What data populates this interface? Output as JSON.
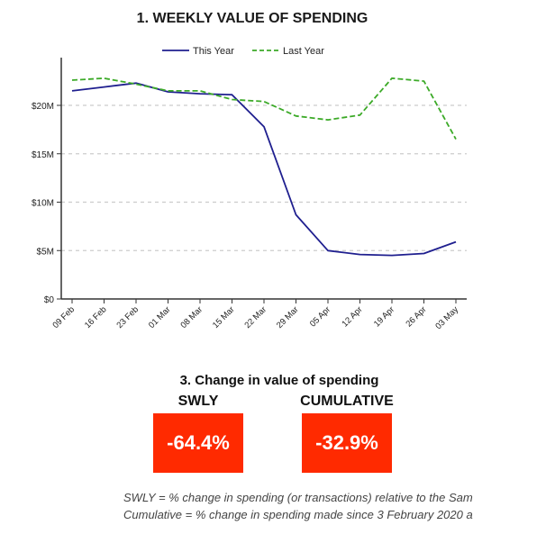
{
  "chart_title": "1. WEEKLY VALUE OF SPENDING",
  "chart_data": {
    "type": "line",
    "title": "1. WEEKLY VALUE OF SPENDING",
    "categories": [
      "09 Feb",
      "16 Feb",
      "23 Feb",
      "01 Mar",
      "08 Mar",
      "15 Mar",
      "22 Mar",
      "29 Mar",
      "05 Apr",
      "12 Apr",
      "19 Apr",
      "26 Apr",
      "03 May"
    ],
    "series": [
      {
        "name": "This Year",
        "color": "#1f1f8f",
        "dash": "solid",
        "values": [
          21.5,
          21.9,
          22.3,
          21.4,
          21.2,
          21.1,
          17.8,
          8.7,
          5.0,
          4.6,
          4.5,
          4.7,
          5.9
        ]
      },
      {
        "name": "Last Year",
        "color": "#3caa28",
        "dash": "dashed",
        "values": [
          22.6,
          22.8,
          22.2,
          21.5,
          21.5,
          20.6,
          20.4,
          18.9,
          18.5,
          19.0,
          22.8,
          22.5,
          16.5
        ]
      }
    ],
    "y_ticks": [
      {
        "v": 0,
        "label": "$0"
      },
      {
        "v": 5,
        "label": "$5M"
      },
      {
        "v": 10,
        "label": "$10M"
      },
      {
        "v": 15,
        "label": "$15M"
      },
      {
        "v": 20,
        "label": "$20M"
      }
    ],
    "ylim": [
      0,
      24
    ],
    "ylabel": "",
    "xlabel": "",
    "grid": "horizontal-dashed",
    "legend": "top-center"
  },
  "section": {
    "title": "3. Change in value of spending",
    "swly_label": "SWLY",
    "swly_value": "-64.4%",
    "cumulative_label": "CUMULATIVE",
    "cumulative_value": "-32.9%"
  },
  "notes": {
    "line1": "SWLY = % change in spending (or transactions) relative to the Sam",
    "line2": "Cumulative = % change in spending made since 3 February 2020 a"
  },
  "colors": {
    "kpi_red": "#ff2a00",
    "grid": "#cccccc"
  }
}
